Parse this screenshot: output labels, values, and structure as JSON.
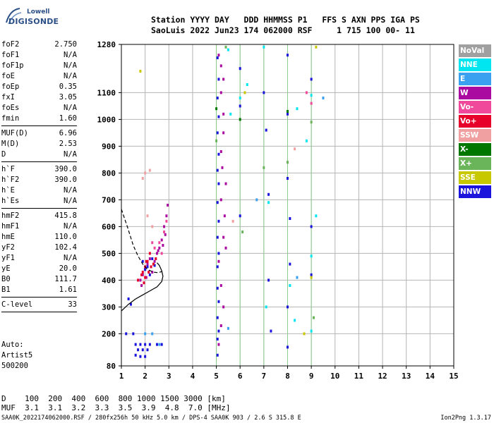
{
  "logo": {
    "brand": "Lowell",
    "product": "DIGISONDE"
  },
  "header": {
    "line1": "Station YYYY DAY   DDD HHMMSS P1   FFS S AXN PPS IGA PS",
    "line2": "SaoLuis 2022 Jun23 174 062000 RSF     1 715 100 00- 11"
  },
  "params": {
    "group1": [
      {
        "k": "foF2",
        "v": "2.750"
      },
      {
        "k": "foF1",
        "v": "N/A"
      },
      {
        "k": "foF1p",
        "v": "N/A"
      },
      {
        "k": "foE",
        "v": "N/A"
      },
      {
        "k": "foEp",
        "v": "0.35"
      },
      {
        "k": "fxI",
        "v": "3.05"
      },
      {
        "k": "foEs",
        "v": "N/A"
      },
      {
        "k": "fmin",
        "v": "1.60"
      }
    ],
    "group2": [
      {
        "k": "MUF(D)",
        "v": "6.96"
      },
      {
        "k": "M(D)",
        "v": "2.53"
      },
      {
        "k": "D",
        "v": "N/A"
      }
    ],
    "group3": [
      {
        "k": "h`F",
        "v": "390.0"
      },
      {
        "k": "h`F2",
        "v": "390.0"
      },
      {
        "k": "h`E",
        "v": "N/A"
      },
      {
        "k": "h`Es",
        "v": "N/A"
      }
    ],
    "group4": [
      {
        "k": "hmF2",
        "v": "415.8"
      },
      {
        "k": "hmF1",
        "v": "N/A"
      },
      {
        "k": "hmE",
        "v": "110.0"
      },
      {
        "k": "yF2",
        "v": "102.4"
      },
      {
        "k": "yF1",
        "v": "N/A"
      },
      {
        "k": "yE",
        "v": "20.0"
      },
      {
        "k": "B0",
        "v": "111.7"
      },
      {
        "k": "B1",
        "v": "1.61"
      }
    ],
    "group5": [
      {
        "k": "C-level",
        "v": "33"
      }
    ]
  },
  "auto": {
    "label": "Auto:",
    "name": "Artist5",
    "code": "500200"
  },
  "legend": [
    {
      "label": "NoVal",
      "color": "#a0a0a0"
    },
    {
      "label": "NNE",
      "color": "#00e6f0"
    },
    {
      "label": "E",
      "color": "#3aa0f0"
    },
    {
      "label": "W",
      "color": "#aa0aa0"
    },
    {
      "label": "Vo-",
      "color": "#f0489a"
    },
    {
      "label": "Vo+",
      "color": "#e6002a"
    },
    {
      "label": "SSW",
      "color": "#f0a0a0"
    },
    {
      "label": "X-",
      "color": "#007800"
    },
    {
      "label": "X+",
      "color": "#6ab45a"
    },
    {
      "label": "SSE",
      "color": "#c8c800"
    },
    {
      "label": "NNW",
      "color": "#1a14dc"
    }
  ],
  "dmuf": {
    "row1": "D    100  200  400  600  800 1000 1500 3000 [km]",
    "row2": "MUF  3.1  3.1  3.2  3.3  3.5  3.9  4.8  7.0 [MHz]"
  },
  "footer": "SAA0K_2022174062000.RSF / 280fx256h 50 kHz 5.0 km / DPS-4 SAA0K 903 / 2.6 S 315.8 E",
  "version": "Ion2Png 1.3.17",
  "chart_data": {
    "type": "scatter",
    "xlim": [
      1,
      15
    ],
    "ylim": [
      80,
      1280
    ],
    "x_ticks": [
      1,
      2,
      3,
      4,
      5,
      6,
      7,
      8,
      9,
      10,
      11,
      12,
      13,
      14,
      15
    ],
    "y_ticks": [
      80,
      200,
      300,
      400,
      500,
      600,
      700,
      800,
      900,
      1000,
      1100,
      1280
    ],
    "grid": true,
    "vertical_markers_mhz": [
      5.0,
      6.0,
      7.0,
      8.0,
      9.0
    ],
    "series": [
      {
        "name": "W",
        "color": "#aa0aa0",
        "points": [
          [
            1.9,
            420
          ],
          [
            2.0,
            440
          ],
          [
            2.1,
            460
          ],
          [
            2.2,
            480
          ],
          [
            2.3,
            430
          ],
          [
            2.4,
            470
          ],
          [
            2.5,
            500
          ],
          [
            2.6,
            520
          ],
          [
            2.7,
            550
          ],
          [
            2.8,
            600
          ],
          [
            2.9,
            640
          ],
          [
            2.95,
            680
          ],
          [
            2.85,
            570
          ],
          [
            2.75,
            530
          ],
          [
            2.55,
            510
          ],
          [
            1.8,
            400
          ],
          [
            1.85,
            380
          ],
          [
            2.05,
            410
          ],
          [
            5.1,
            1240
          ],
          [
            5.2,
            1100
          ],
          [
            5.3,
            950
          ],
          [
            5.25,
            820
          ],
          [
            5.2,
            700
          ],
          [
            5.3,
            560
          ],
          [
            5.1,
            470
          ],
          [
            5.2,
            380
          ],
          [
            5.3,
            300
          ],
          [
            5.2,
            230
          ],
          [
            5.1,
            160
          ],
          [
            5.3,
            1020
          ],
          [
            5.2,
            880
          ],
          [
            5.4,
            760
          ],
          [
            5.35,
            640
          ],
          [
            5.4,
            520
          ],
          [
            5.2,
            1200
          ],
          [
            5.3,
            1150
          ]
        ]
      },
      {
        "name": "NNW",
        "color": "#1a14dc",
        "points": [
          [
            1.6,
            160
          ],
          [
            1.8,
            160
          ],
          [
            2.0,
            160
          ],
          [
            2.2,
            160
          ],
          [
            2.5,
            160
          ],
          [
            2.7,
            160
          ],
          [
            1.7,
            140
          ],
          [
            1.9,
            140
          ],
          [
            2.1,
            140
          ],
          [
            1.6,
            120
          ],
          [
            1.8,
            115
          ],
          [
            2.0,
            115
          ],
          [
            1.2,
            200
          ],
          [
            1.5,
            200
          ],
          [
            1.9,
            470
          ],
          [
            2.0,
            440
          ],
          [
            2.1,
            450
          ],
          [
            2.2,
            420
          ],
          [
            2.3,
            480
          ],
          [
            2.4,
            455
          ],
          [
            5.05,
            1230
          ],
          [
            5.05,
            1080
          ],
          [
            5.05,
            950
          ],
          [
            5.05,
            810
          ],
          [
            5.05,
            690
          ],
          [
            5.05,
            560
          ],
          [
            5.05,
            450
          ],
          [
            5.05,
            370
          ],
          [
            5.05,
            260
          ],
          [
            5.05,
            180
          ],
          [
            5.05,
            120
          ],
          [
            5.1,
            1150
          ],
          [
            5.1,
            1010
          ],
          [
            5.1,
            870
          ],
          [
            5.1,
            760
          ],
          [
            5.1,
            620
          ],
          [
            5.1,
            500
          ],
          [
            5.1,
            320
          ],
          [
            5.1,
            210
          ],
          [
            6.0,
            1190
          ],
          [
            6.0,
            1050
          ],
          [
            6.0,
            640
          ],
          [
            7.0,
            1100
          ],
          [
            7.1,
            960
          ],
          [
            7.2,
            720
          ],
          [
            7.2,
            400
          ],
          [
            7.3,
            210
          ],
          [
            8.0,
            1240
          ],
          [
            8.0,
            1020
          ],
          [
            8.0,
            780
          ],
          [
            8.1,
            630
          ],
          [
            8.1,
            460
          ],
          [
            8.0,
            300
          ],
          [
            8.0,
            150
          ],
          [
            9.0,
            1150
          ],
          [
            9.0,
            600
          ],
          [
            9.0,
            420
          ],
          [
            1.3,
            330
          ],
          [
            1.4,
            310
          ]
        ]
      },
      {
        "name": "Vo+",
        "color": "#e6002a",
        "points": [
          [
            1.9,
            430
          ],
          [
            2.0,
            450
          ],
          [
            2.1,
            470
          ],
          [
            2.0,
            410
          ],
          [
            1.95,
            390
          ],
          [
            2.15,
            430
          ],
          [
            2.25,
            450
          ],
          [
            2.35,
            460
          ],
          [
            2.45,
            480
          ],
          [
            1.85,
            420
          ],
          [
            1.7,
            400
          ],
          [
            2.05,
            470
          ],
          [
            2.2,
            500
          ]
        ]
      },
      {
        "name": "Vo-",
        "color": "#f0489a",
        "points": [
          [
            2.6,
            540
          ],
          [
            2.8,
            580
          ],
          [
            2.9,
            620
          ],
          [
            2.7,
            500
          ],
          [
            2.4,
            520
          ],
          [
            2.3,
            540
          ],
          [
            9.0,
            1060
          ],
          [
            8.8,
            1100
          ]
        ]
      },
      {
        "name": "NNE",
        "color": "#00e6f0",
        "points": [
          [
            5.5,
            1260
          ],
          [
            6.3,
            1130
          ],
          [
            7.0,
            1270
          ],
          [
            7.2,
            690
          ],
          [
            8.4,
            1040
          ],
          [
            8.8,
            920
          ],
          [
            9.0,
            210
          ],
          [
            9.2,
            640
          ],
          [
            9.0,
            490
          ],
          [
            8.1,
            380
          ],
          [
            7.1,
            300
          ],
          [
            6.0,
            1080
          ],
          [
            9.0,
            1090
          ],
          [
            8.3,
            250
          ],
          [
            5.6,
            1020
          ]
        ]
      },
      {
        "name": "X+",
        "color": "#6ab45a",
        "points": [
          [
            5.0,
            920
          ],
          [
            6.1,
            580
          ],
          [
            7.0,
            820
          ],
          [
            8.0,
            840
          ],
          [
            9.0,
            990
          ],
          [
            9.1,
            260
          ],
          [
            5.4,
            1270
          ]
        ]
      },
      {
        "name": "SSE",
        "color": "#c8c800",
        "points": [
          [
            9.2,
            1270
          ],
          [
            9.0,
            410
          ],
          [
            8.7,
            200
          ],
          [
            6.2,
            1100
          ],
          [
            1.8,
            1180
          ]
        ]
      },
      {
        "name": "SSW",
        "color": "#f0a0a0",
        "points": [
          [
            1.9,
            780
          ],
          [
            2.0,
            800
          ],
          [
            2.2,
            810
          ],
          [
            2.1,
            640
          ],
          [
            2.3,
            600
          ],
          [
            5.7,
            620
          ],
          [
            8.3,
            890
          ]
        ]
      },
      {
        "name": "X-",
        "color": "#007800",
        "points": [
          [
            8.0,
            1030
          ],
          [
            6.0,
            1000
          ],
          [
            5.0,
            1040
          ]
        ]
      },
      {
        "name": "E",
        "color": "#3aa0f0",
        "points": [
          [
            2.0,
            200
          ],
          [
            2.3,
            200
          ],
          [
            2.6,
            160
          ],
          [
            5.5,
            220
          ],
          [
            6.7,
            700
          ],
          [
            8.4,
            410
          ],
          [
            9.5,
            1080
          ]
        ]
      }
    ],
    "profile_solid": [
      [
        1.0,
        285
      ],
      [
        1.3,
        310
      ],
      [
        1.6,
        330
      ],
      [
        1.9,
        345
      ],
      [
        2.2,
        360
      ],
      [
        2.5,
        375
      ],
      [
        2.7,
        395
      ],
      [
        2.75,
        415
      ],
      [
        2.7,
        435
      ],
      [
        2.6,
        455
      ],
      [
        2.5,
        465
      ]
    ],
    "profile_dashed": [
      [
        1.0,
        665
      ],
      [
        1.25,
        600
      ],
      [
        1.5,
        530
      ],
      [
        1.7,
        490
      ],
      [
        1.9,
        460
      ],
      [
        2.1,
        440
      ],
      [
        2.35,
        430
      ],
      [
        2.55,
        428
      ],
      [
        2.7,
        432
      ]
    ]
  }
}
